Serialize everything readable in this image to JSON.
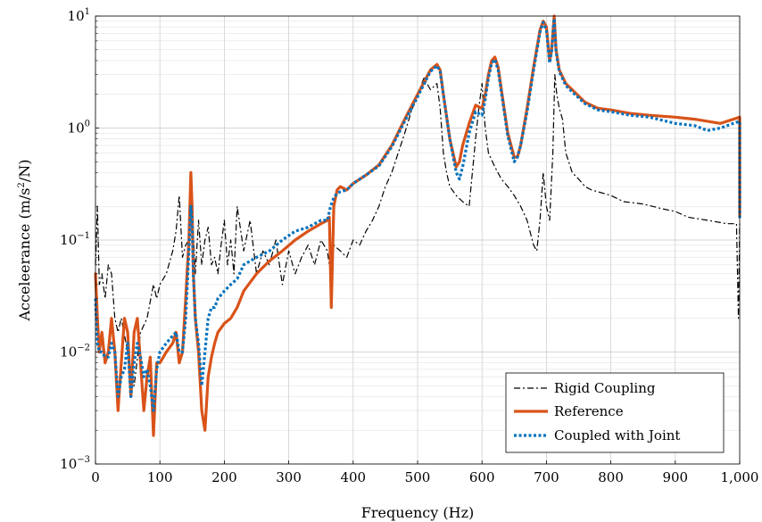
{
  "chart_data": {
    "type": "line",
    "xlabel": "Frequency (Hz)",
    "ylabel_text": "Acceleerance (m/s",
    "ylabel_sup": "2",
    "ylabel_end": "/N)",
    "xlim": [
      0,
      1000
    ],
    "ylim": [
      0.001,
      10
    ],
    "yscale": "log",
    "grid": true,
    "legend_position": "lower-right",
    "x_ticks": [
      "0",
      "100",
      "200",
      "300",
      "400",
      "500",
      "600",
      "700",
      "800",
      "900",
      "1,000"
    ],
    "y_tick_base": "10",
    "y_tick_exponents": [
      "−3",
      "−2",
      "−1",
      "0",
      "1"
    ],
    "series": [
      {
        "name": "Rigid Coupling",
        "color": "#000000",
        "style": "dashdot",
        "x": [
          0,
          3,
          6,
          10,
          15,
          20,
          25,
          30,
          35,
          40,
          50,
          60,
          70,
          80,
          90,
          95,
          100,
          110,
          120,
          125,
          130,
          135,
          140,
          145,
          150,
          155,
          160,
          165,
          170,
          175,
          180,
          185,
          190,
          195,
          200,
          205,
          210,
          215,
          220,
          230,
          240,
          250,
          260,
          270,
          280,
          290,
          300,
          310,
          320,
          330,
          340,
          350,
          360,
          365,
          370,
          380,
          390,
          400,
          410,
          420,
          430,
          440,
          450,
          460,
          470,
          480,
          490,
          500,
          510,
          520,
          530,
          535,
          540,
          545,
          550,
          560,
          570,
          580,
          590,
          595,
          600,
          605,
          610,
          620,
          630,
          640,
          650,
          660,
          670,
          680,
          685,
          690,
          695,
          700,
          705,
          710,
          713,
          716,
          720,
          725,
          730,
          740,
          750,
          760,
          770,
          780,
          800,
          820,
          850,
          880,
          900,
          920,
          950,
          980,
          995,
          998,
          1000
        ],
        "y": [
          0.06,
          0.2,
          0.04,
          0.05,
          0.03,
          0.06,
          0.05,
          0.02,
          0.015,
          0.02,
          0.01,
          0.005,
          0.015,
          0.02,
          0.04,
          0.03,
          0.04,
          0.05,
          0.08,
          0.12,
          0.25,
          0.07,
          0.09,
          0.1,
          0.2,
          0.05,
          0.15,
          0.06,
          0.1,
          0.13,
          0.06,
          0.07,
          0.05,
          0.09,
          0.15,
          0.06,
          0.1,
          0.05,
          0.2,
          0.08,
          0.15,
          0.05,
          0.08,
          0.06,
          0.1,
          0.04,
          0.08,
          0.05,
          0.07,
          0.09,
          0.06,
          0.1,
          0.08,
          0.05,
          0.09,
          0.08,
          0.07,
          0.1,
          0.09,
          0.12,
          0.15,
          0.2,
          0.3,
          0.4,
          0.6,
          0.9,
          1.4,
          2.0,
          2.8,
          2.2,
          2.5,
          1.5,
          0.6,
          0.4,
          0.3,
          0.25,
          0.22,
          0.2,
          0.8,
          1.5,
          2.5,
          1.0,
          0.6,
          0.45,
          0.35,
          0.3,
          0.25,
          0.2,
          0.15,
          0.09,
          0.08,
          0.15,
          0.4,
          0.2,
          0.15,
          0.6,
          3.0,
          2.0,
          1.5,
          1.2,
          0.6,
          0.4,
          0.35,
          0.3,
          0.28,
          0.27,
          0.25,
          0.22,
          0.21,
          0.19,
          0.18,
          0.16,
          0.15,
          0.14,
          0.14,
          0.02,
          0.14
        ]
      },
      {
        "name": "Reference",
        "color": "#d95319",
        "style": "solid",
        "x": [
          0,
          3,
          6,
          10,
          15,
          20,
          25,
          30,
          35,
          40,
          45,
          50,
          55,
          60,
          65,
          70,
          75,
          80,
          85,
          90,
          95,
          100,
          110,
          120,
          125,
          130,
          135,
          140,
          145,
          148,
          150,
          152,
          155,
          160,
          165,
          170,
          175,
          180,
          185,
          190,
          200,
          210,
          220,
          230,
          250,
          270,
          290,
          310,
          330,
          350,
          360,
          363,
          366,
          370,
          375,
          380,
          390,
          400,
          420,
          440,
          460,
          480,
          500,
          520,
          530,
          535,
          540,
          550,
          560,
          565,
          570,
          580,
          590,
          600,
          605,
          610,
          615,
          620,
          625,
          630,
          640,
          650,
          655,
          660,
          670,
          680,
          690,
          695,
          700,
          705,
          708,
          712,
          715,
          720,
          730,
          740,
          760,
          780,
          800,
          830,
          860,
          900,
          930,
          950,
          970,
          990,
          1000,
          1000
        ],
        "y": [
          0.05,
          0.02,
          0.01,
          0.015,
          0.008,
          0.01,
          0.02,
          0.01,
          0.003,
          0.008,
          0.02,
          0.015,
          0.004,
          0.015,
          0.02,
          0.008,
          0.003,
          0.006,
          0.009,
          0.0018,
          0.008,
          0.008,
          0.01,
          0.012,
          0.015,
          0.008,
          0.01,
          0.03,
          0.1,
          0.4,
          0.2,
          0.05,
          0.02,
          0.01,
          0.003,
          0.002,
          0.006,
          0.009,
          0.012,
          0.015,
          0.018,
          0.02,
          0.025,
          0.035,
          0.05,
          0.065,
          0.08,
          0.1,
          0.12,
          0.14,
          0.15,
          0.16,
          0.025,
          0.2,
          0.28,
          0.3,
          0.28,
          0.32,
          0.38,
          0.47,
          0.7,
          1.2,
          2.0,
          3.3,
          3.7,
          3.3,
          2.0,
          0.8,
          0.45,
          0.5,
          0.7,
          1.1,
          1.6,
          1.5,
          2.0,
          3.0,
          4.0,
          4.3,
          3.5,
          2.2,
          0.9,
          0.55,
          0.55,
          0.7,
          1.5,
          3.5,
          7.5,
          9.0,
          8.0,
          4.0,
          5.0,
          10.0,
          5.0,
          3.3,
          2.5,
          2.2,
          1.7,
          1.5,
          1.45,
          1.35,
          1.3,
          1.25,
          1.2,
          1.15,
          1.1,
          1.2,
          1.25,
          0.17
        ]
      },
      {
        "name": "Coupled with Joint",
        "color": "#0072bd",
        "style": "dotted",
        "x": [
          0,
          3,
          6,
          10,
          15,
          20,
          25,
          30,
          35,
          40,
          45,
          50,
          55,
          60,
          65,
          70,
          75,
          80,
          85,
          90,
          95,
          100,
          110,
          120,
          125,
          130,
          135,
          140,
          145,
          148,
          150,
          152,
          155,
          160,
          165,
          170,
          175,
          180,
          185,
          190,
          200,
          210,
          220,
          230,
          250,
          270,
          290,
          310,
          330,
          350,
          360,
          365,
          370,
          375,
          380,
          390,
          400,
          420,
          440,
          460,
          480,
          500,
          520,
          530,
          535,
          540,
          550,
          560,
          565,
          570,
          580,
          590,
          600,
          605,
          610,
          615,
          620,
          625,
          630,
          640,
          650,
          655,
          660,
          670,
          680,
          690,
          695,
          700,
          705,
          708,
          712,
          715,
          720,
          730,
          740,
          760,
          780,
          800,
          830,
          860,
          900,
          930,
          950,
          970,
          990,
          1000,
          1000
        ],
        "y": [
          0.03,
          0.012,
          0.01,
          0.01,
          0.009,
          0.009,
          0.012,
          0.01,
          0.004,
          0.006,
          0.007,
          0.012,
          0.004,
          0.008,
          0.012,
          0.009,
          0.006,
          0.007,
          0.005,
          0.003,
          0.007,
          0.01,
          0.012,
          0.014,
          0.015,
          0.01,
          0.01,
          0.02,
          0.08,
          0.2,
          0.15,
          0.05,
          0.02,
          0.012,
          0.005,
          0.01,
          0.02,
          0.025,
          0.025,
          0.03,
          0.035,
          0.04,
          0.045,
          0.06,
          0.07,
          0.08,
          0.1,
          0.12,
          0.13,
          0.15,
          0.15,
          0.2,
          0.24,
          0.26,
          0.27,
          0.28,
          0.32,
          0.38,
          0.46,
          0.68,
          1.15,
          1.9,
          3.2,
          3.6,
          3.2,
          2.0,
          0.8,
          0.4,
          0.35,
          0.45,
          0.9,
          1.4,
          1.3,
          1.8,
          2.8,
          3.8,
          4.1,
          3.3,
          2.1,
          0.85,
          0.5,
          0.55,
          0.7,
          1.4,
          3.3,
          7.2,
          8.8,
          7.5,
          3.8,
          4.8,
          9.5,
          4.8,
          3.2,
          2.4,
          2.1,
          1.65,
          1.45,
          1.4,
          1.3,
          1.25,
          1.1,
          1.05,
          0.95,
          1.0,
          1.1,
          1.15,
          0.15
        ]
      }
    ]
  }
}
